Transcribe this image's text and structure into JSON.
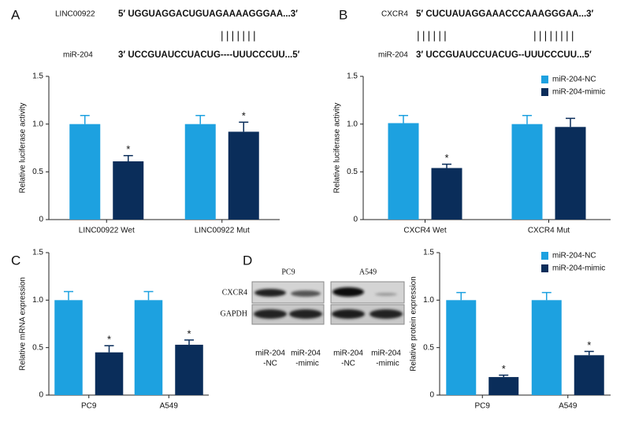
{
  "panel_labels": [
    "A",
    "B",
    "C",
    "D"
  ],
  "sequences": [
    {
      "target_name": "LINC00922",
      "target_seq": "5′ UGGUAGGACUGUAGAAAAGGGAA...3′",
      "pairing": [
        "|||||||"
      ],
      "mirna_name": "miR-204",
      "mirna_seq": "3′ UCCGUAUCCUACUG----UUUCCCUU...5′"
    },
    {
      "target_name": "CXCR4",
      "target_seq": "5′ CUCUAUAGGAAACCCAAAGGGAA...3′",
      "pairing": [
        "||||||",
        "||||||||"
      ],
      "mirna_name": "miR-204",
      "mirna_seq": "3′ UCCGUAUCCUACUG--UUUCCCUU...5′"
    }
  ],
  "blot": {
    "groups": [
      "PC9",
      "A549"
    ],
    "rows": [
      "CXCR4",
      "GAPDH"
    ],
    "lanes": [
      [
        "miR-204",
        "-NC"
      ],
      [
        "miR-204",
        "-mimic"
      ],
      [
        "miR-204",
        "-NC"
      ],
      [
        "miR-204",
        "-mimic"
      ]
    ]
  },
  "chart_data": [
    {
      "type": "bar",
      "ylabel": "Relative luciferase activity",
      "categories": [
        "LINC00922 Wet",
        "LINC00922 Mut"
      ],
      "series": [
        {
          "color": "#1da1e0",
          "values": [
            1.0,
            1.0
          ],
          "errors": [
            0.09,
            0.09
          ],
          "significance": [
            null,
            null
          ]
        },
        {
          "color": "#0a2d5a",
          "values": [
            0.61,
            0.92
          ],
          "errors": [
            0.06,
            0.1
          ],
          "significance": [
            "*",
            "*"
          ]
        }
      ],
      "ylim": [
        0,
        1.5
      ],
      "yticks": [
        0,
        0.5,
        {
          "value": 1,
          "label": "1.0"
        },
        1.5
      ],
      "grid": false
    },
    {
      "type": "bar",
      "ylabel": "Relative luciferase activity",
      "categories": [
        "CXCR4 Wet",
        "CXCR4 Mut"
      ],
      "series": [
        {
          "name": "miR-204-NC",
          "color": "#1da1e0",
          "values": [
            1.01,
            1.0
          ],
          "errors": [
            0.08,
            0.09
          ],
          "significance": [
            null,
            null
          ]
        },
        {
          "name": "miR-204-mimic",
          "color": "#0a2d5a",
          "values": [
            0.54,
            0.97
          ],
          "errors": [
            0.04,
            0.09
          ],
          "significance": [
            "*",
            null
          ]
        }
      ],
      "ylim": [
        0,
        1.5
      ],
      "yticks": [
        0,
        0.5,
        {
          "value": 1,
          "label": "1.0"
        },
        1.5
      ],
      "grid": false,
      "legend": "upper right"
    },
    {
      "type": "bar",
      "ylabel": "Relative mRNA expression",
      "categories": [
        "PC9",
        "A549"
      ],
      "series": [
        {
          "color": "#1da1e0",
          "values": [
            1.0,
            1.0
          ],
          "errors": [
            0.09,
            0.09
          ],
          "significance": [
            null,
            null
          ]
        },
        {
          "color": "#0a2d5a",
          "values": [
            0.45,
            0.53
          ],
          "errors": [
            0.07,
            0.05
          ],
          "significance": [
            "*",
            "*"
          ]
        }
      ],
      "ylim": [
        0,
        1.5
      ],
      "yticks": [
        0,
        0.5,
        {
          "value": 1,
          "label": "1.0"
        },
        1.5
      ],
      "grid": false
    },
    {
      "type": "bar",
      "ylabel": "Relative protein expression",
      "categories": [
        "PC9",
        "A549"
      ],
      "series": [
        {
          "name": "miR-204-NC",
          "color": "#1da1e0",
          "values": [
            1.0,
            1.0
          ],
          "errors": [
            0.08,
            0.08
          ],
          "significance": [
            null,
            null
          ]
        },
        {
          "name": "miR-204-mimic",
          "color": "#0a2d5a",
          "values": [
            0.19,
            0.42
          ],
          "errors": [
            0.02,
            0.04
          ],
          "significance": [
            "*",
            "*"
          ]
        }
      ],
      "ylim": [
        0,
        1.5
      ],
      "yticks": [
        0,
        0.5,
        {
          "value": 1,
          "label": "1.0"
        },
        1.5
      ],
      "grid": false,
      "legend": "upper right"
    }
  ]
}
